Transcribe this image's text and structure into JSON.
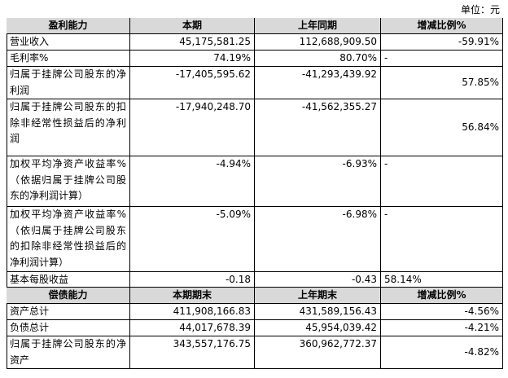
{
  "unit": "单位：元",
  "table": {
    "rows": [
      [
        "盈利能力",
        "本期",
        "上年同期",
        "增减比例%"
      ],
      [
        "营业收入",
        "45,175,581.25",
        "112,688,909.50",
        "-59.91%"
      ],
      [
        "毛利率%",
        "74.19%",
        "80.70%",
        "-"
      ],
      [
        "归属于挂牌公司股东的净利润",
        "-17,405,595.62",
        "-41,293,439.92",
        "57.85%"
      ],
      [
        "归属于挂牌公司股东的扣除非经常性损益后的净利润",
        "-17,940,248.70",
        "-41,562,355.27",
        "56.84%"
      ],
      [
        "加权平均净资产收益率%（依据归属于挂牌公司股东的净利润计算）",
        "-4.94%",
        "-6.93%",
        "-"
      ],
      [
        "加权平均净资产收益率%（依归属于挂牌公司股东的扣除非经常性损益后的净利润计算）",
        "-5.09%",
        "-6.98%",
        "-"
      ],
      [
        "基本每股收益",
        "-0.18",
        "-0.43",
        "58.14%"
      ],
      [
        "偿债能力",
        "本期期末",
        "上年期末",
        "增减比例%"
      ],
      [
        "资产总计",
        "411,908,166.83",
        "431,589,156.43",
        "-4.56%"
      ],
      [
        "负债总计",
        "44,017,678.39",
        "45,954,039.42",
        "-4.21%"
      ],
      [
        "归属于挂牌公司股东的净资产",
        "343,557,176.75",
        "360,962,772.37",
        "-4.82%"
      ]
    ]
  }
}
